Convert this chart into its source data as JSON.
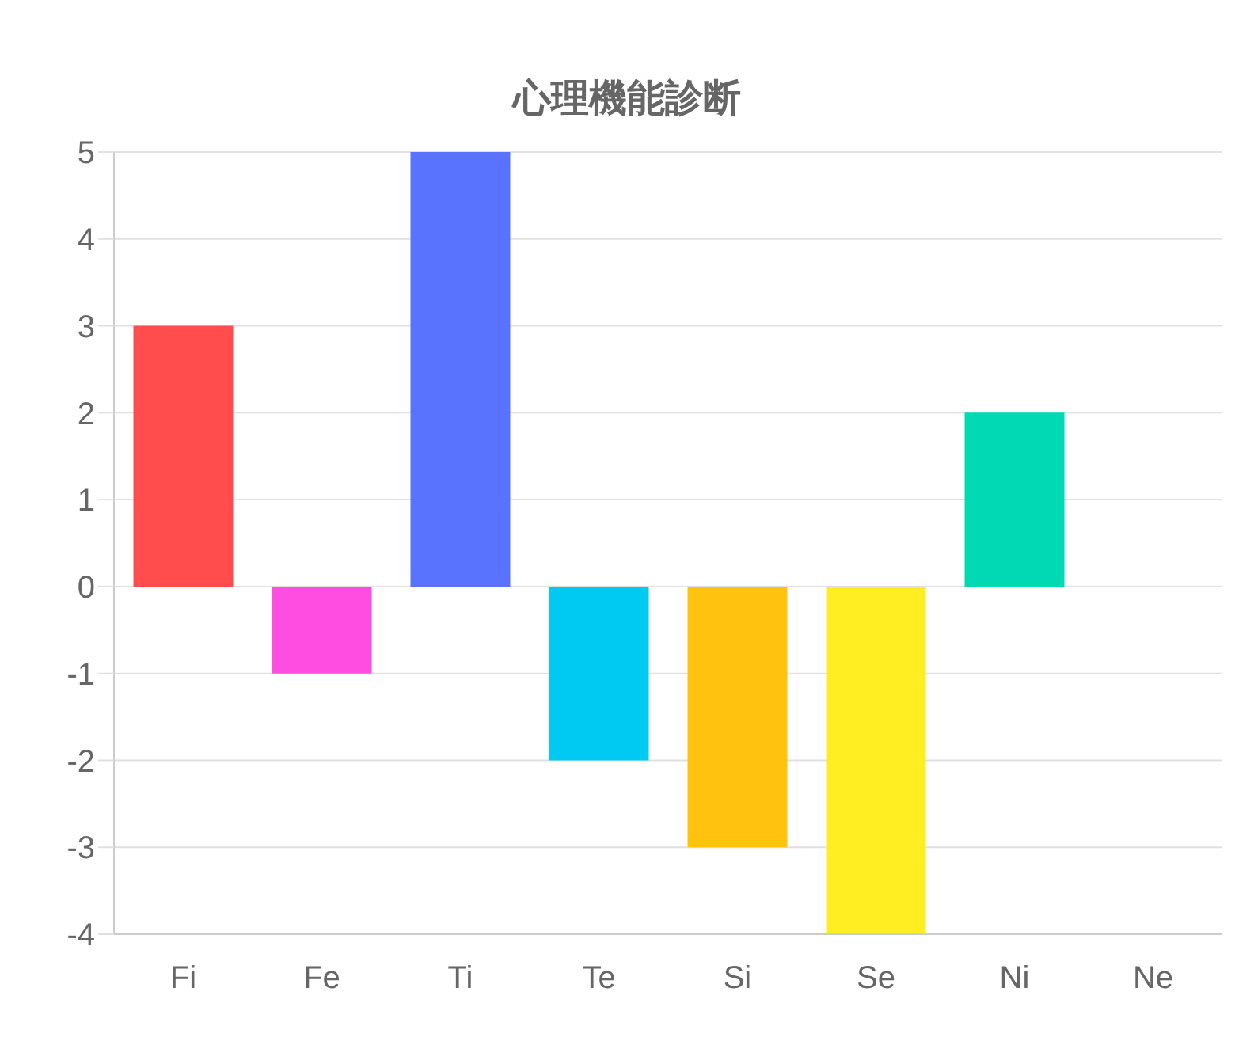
{
  "chart_data": {
    "type": "bar",
    "title": "心理機能診断",
    "categories": [
      "Fi",
      "Fe",
      "Ti",
      "Te",
      "Si",
      "Se",
      "Ni",
      "Ne"
    ],
    "values": [
      3,
      -1,
      5,
      -2,
      -3,
      -4,
      2,
      0
    ],
    "colors": [
      "#ff4d4d",
      "#ff4de1",
      "#5a73ff",
      "#00c9f2",
      "#ffc20f",
      "#ffee22",
      "#00d9b4",
      "#9966ff"
    ],
    "ylim": [
      -4,
      5
    ],
    "yticks": [
      -4,
      -3,
      -2,
      -1,
      0,
      1,
      2,
      3,
      4,
      5
    ],
    "grid": "y",
    "legend": false
  }
}
